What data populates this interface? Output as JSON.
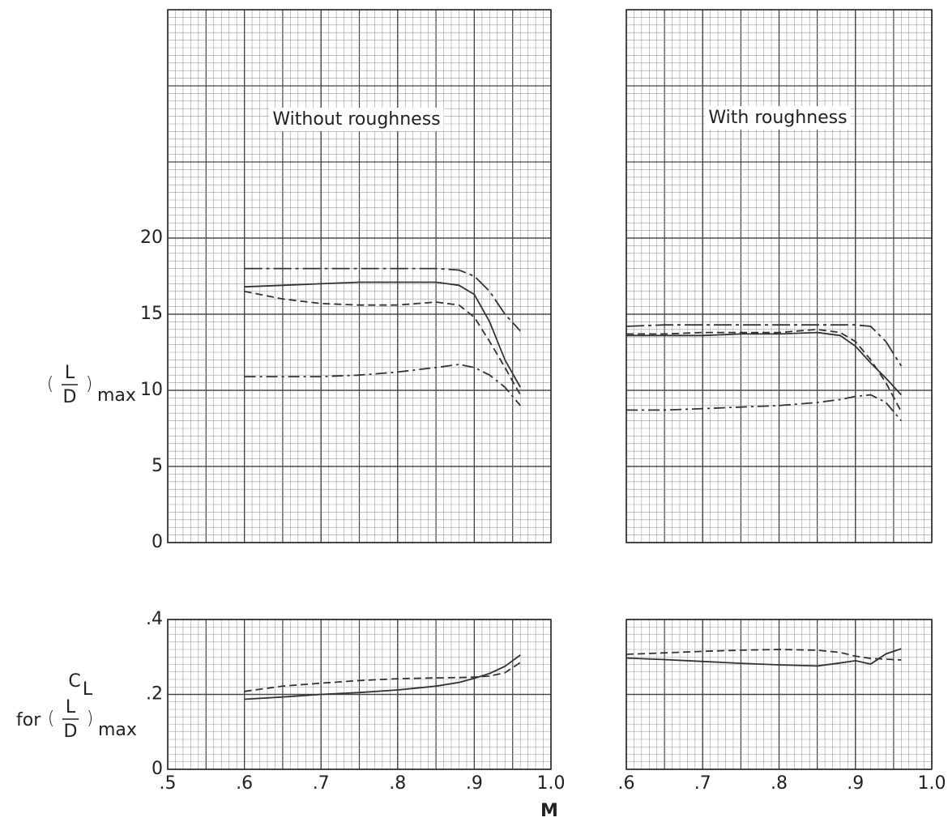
{
  "chart_data": [
    {
      "type": "line",
      "title": "Without roughness",
      "ylabel": [
        "L",
        "D",
        "max"
      ],
      "xlim": [
        0.5,
        1.0
      ],
      "ylim": [
        0,
        35
      ],
      "xticks": [
        0.5,
        0.6,
        0.7,
        0.8,
        0.9,
        1.0
      ],
      "yticks": [
        0,
        5,
        10,
        15,
        20
      ],
      "xtick_labels": false,
      "ytick_labels": true,
      "grid": true,
      "x": [
        0.6,
        0.65,
        0.7,
        0.75,
        0.8,
        0.85,
        0.88,
        0.9,
        0.92,
        0.94,
        0.96
      ],
      "series": [
        {
          "color": "#333333",
          "dash": "longdash",
          "values": [
            18.0,
            18.0,
            18.0,
            18.0,
            18.0,
            18.0,
            17.9,
            17.5,
            16.5,
            15.0,
            13.9
          ]
        },
        {
          "color": "#333333",
          "dash": "solid",
          "values": [
            16.8,
            16.9,
            17.0,
            17.1,
            17.1,
            17.1,
            16.9,
            16.3,
            14.5,
            12.0,
            10.2
          ]
        },
        {
          "color": "#333333",
          "dash": "dashed",
          "values": [
            16.5,
            16.0,
            15.7,
            15.6,
            15.6,
            15.8,
            15.6,
            14.8,
            13.2,
            11.5,
            9.7
          ]
        },
        {
          "color": "#333333",
          "dash": "dashdot",
          "values": [
            10.9,
            10.9,
            10.9,
            11.0,
            11.2,
            11.5,
            11.7,
            11.5,
            11.0,
            10.2,
            9.0
          ]
        }
      ]
    },
    {
      "type": "line",
      "title": "With roughness",
      "xlim": [
        0.6,
        1.0
      ],
      "ylim": [
        0,
        35
      ],
      "xticks": [
        0.6,
        0.7,
        0.8,
        0.9,
        1.0
      ],
      "yticks": [
        0,
        5,
        10,
        15,
        20
      ],
      "xtick_labels": false,
      "ytick_labels": false,
      "grid": true,
      "x": [
        0.6,
        0.65,
        0.7,
        0.75,
        0.8,
        0.85,
        0.88,
        0.9,
        0.92,
        0.94,
        0.96
      ],
      "series": [
        {
          "color": "#333333",
          "dash": "longdash",
          "values": [
            14.2,
            14.3,
            14.3,
            14.3,
            14.3,
            14.3,
            14.3,
            14.3,
            14.2,
            13.2,
            11.6
          ]
        },
        {
          "color": "#333333",
          "dash": "solid",
          "values": [
            13.6,
            13.6,
            13.6,
            13.7,
            13.7,
            13.8,
            13.6,
            12.9,
            11.8,
            10.8,
            9.7
          ]
        },
        {
          "color": "#333333",
          "dash": "dashed",
          "values": [
            13.7,
            13.7,
            13.8,
            13.8,
            13.8,
            14.0,
            13.8,
            13.2,
            12.0,
            10.5,
            8.6
          ]
        },
        {
          "color": "#333333",
          "dash": "dashdot",
          "values": [
            8.7,
            8.7,
            8.8,
            8.9,
            9.0,
            9.2,
            9.4,
            9.6,
            9.7,
            9.2,
            8.0
          ]
        }
      ]
    },
    {
      "type": "line",
      "ylabel": [
        "C",
        "L",
        "for",
        "L",
        "D",
        "max"
      ],
      "xlabel": "M",
      "xlim": [
        0.5,
        1.0
      ],
      "ylim": [
        0,
        0.4
      ],
      "xticks": [
        {
          "value": 0.5,
          "label": ".5"
        },
        {
          "value": 0.6,
          "label": ".6"
        },
        {
          "value": 0.7,
          "label": ".7"
        },
        {
          "value": 0.8,
          "label": ".8"
        },
        {
          "value": 0.9,
          "label": ".9"
        },
        {
          "value": 1.0,
          "label": "1.0"
        }
      ],
      "yticks": [
        0,
        {
          "value": 0.2,
          "label": ".2"
        },
        {
          "value": 0.4,
          "label": ".4"
        }
      ],
      "xtick_labels": true,
      "ytick_labels": true,
      "grid": true,
      "x": [
        0.6,
        0.65,
        0.7,
        0.75,
        0.8,
        0.85,
        0.88,
        0.9,
        0.92,
        0.94,
        0.96
      ],
      "series": [
        {
          "color": "#333333",
          "dash": "solid",
          "values": [
            0.187,
            0.193,
            0.2,
            0.205,
            0.212,
            0.222,
            0.232,
            0.243,
            0.256,
            0.275,
            0.305
          ]
        },
        {
          "color": "#333333",
          "dash": "dashed",
          "values": [
            0.208,
            0.222,
            0.23,
            0.237,
            0.242,
            0.244,
            0.245,
            0.246,
            0.249,
            0.258,
            0.285
          ]
        }
      ]
    },
    {
      "type": "line",
      "xlim": [
        0.6,
        1.0
      ],
      "ylim": [
        0,
        0.4
      ],
      "xticks": [
        {
          "value": 0.6,
          "label": ".6"
        },
        {
          "value": 0.7,
          "label": ".7"
        },
        {
          "value": 0.8,
          "label": ".8"
        },
        {
          "value": 0.9,
          "label": ".9"
        },
        {
          "value": 1.0,
          "label": "1.0"
        }
      ],
      "yticks": [
        0,
        0.2,
        0.4
      ],
      "xtick_labels": true,
      "ytick_labels": false,
      "grid": true,
      "x": [
        0.6,
        0.65,
        0.7,
        0.75,
        0.8,
        0.85,
        0.88,
        0.9,
        0.92,
        0.94,
        0.96
      ],
      "series": [
        {
          "color": "#333333",
          "dash": "solid",
          "values": [
            0.297,
            0.293,
            0.288,
            0.283,
            0.279,
            0.276,
            0.284,
            0.29,
            0.281,
            0.308,
            0.322
          ]
        },
        {
          "color": "#333333",
          "dash": "dashed",
          "values": [
            0.307,
            0.311,
            0.315,
            0.318,
            0.32,
            0.318,
            0.312,
            0.302,
            0.296,
            0.294,
            0.292
          ]
        }
      ]
    }
  ]
}
